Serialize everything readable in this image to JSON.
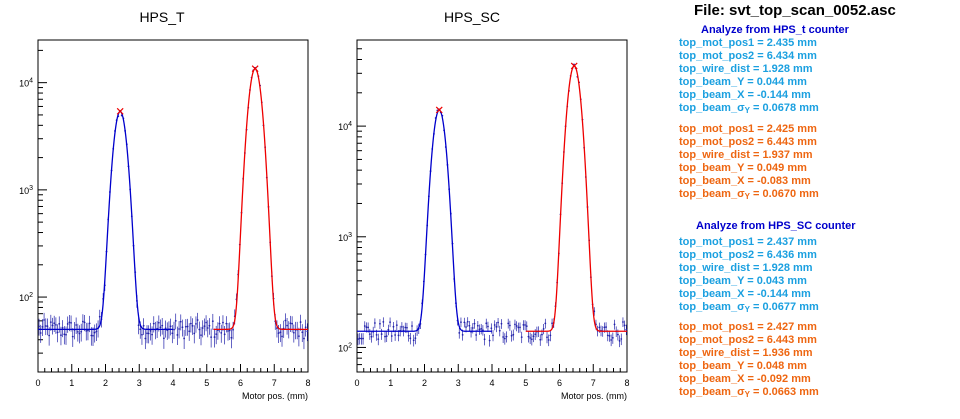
{
  "chart_data": [
    {
      "type": "scatter",
      "title": "HPS_T",
      "xlabel": "Motor pos. (mm)",
      "ylabel": "",
      "xlim": [
        0,
        8
      ],
      "ylim": [
        20,
        25000
      ],
      "yscale": "log",
      "xticks": [
        "0",
        "1",
        "2",
        "3",
        "4",
        "5",
        "6",
        "7",
        "8"
      ],
      "yticks": [
        "10^2",
        "10^3",
        "10^4"
      ],
      "series": [
        {
          "color": "#2222aa",
          "style": "points-with-errorbars",
          "baseline": 50,
          "peaks": [
            {
              "x": 2.435,
              "y": 5400
            },
            {
              "x": 6.434,
              "y": 13500
            }
          ]
        },
        {
          "color": "#0000cc",
          "style": "fit-line",
          "x_range": [
            0,
            4.0
          ],
          "mu": 2.435,
          "sigma": 0.16,
          "amp": 5400,
          "baseline": 50
        },
        {
          "color": "#ee0000",
          "style": "fit-line",
          "x_range": [
            5.2,
            8
          ],
          "mu": 6.434,
          "sigma": 0.16,
          "amp": 13500,
          "baseline": 50
        }
      ]
    },
    {
      "type": "scatter",
      "title": "HPS_SC",
      "xlabel": "Motor pos. (mm)",
      "ylabel": "",
      "xlim": [
        0,
        8
      ],
      "ylim": [
        60,
        60000
      ],
      "yscale": "log",
      "xticks": [
        "0",
        "1",
        "2",
        "3",
        "4",
        "5",
        "6",
        "7",
        "8"
      ],
      "yticks": [
        "10^2",
        "10^3",
        "10^4"
      ],
      "series": [
        {
          "color": "#2222aa",
          "style": "points-with-errorbars",
          "baseline": 140,
          "peaks": [
            {
              "x": 2.437,
              "y": 14000
            },
            {
              "x": 6.436,
              "y": 35000
            }
          ]
        },
        {
          "color": "#0000cc",
          "style": "fit-line",
          "x_range": [
            0,
            4.0
          ],
          "mu": 2.437,
          "sigma": 0.16,
          "amp": 14000,
          "baseline": 140
        },
        {
          "color": "#ee0000",
          "style": "fit-line",
          "x_range": [
            5.0,
            8
          ],
          "mu": 6.436,
          "sigma": 0.16,
          "amp": 35000,
          "baseline": 140
        }
      ]
    }
  ],
  "file_title": "File: svt_top_scan_0052.asc",
  "hps_t_section": {
    "heading": "Analyze from HPS_t counter",
    "blue_lines": [
      "top_mot_pos1 = 2.435 mm",
      "top_mot_pos2 = 6.434 mm",
      "top_wire_dist = 1.928 mm",
      "top_beam_Y = 0.044 mm",
      "top_beam_X = -0.144 mm"
    ],
    "blue_sigma_prefix": "top_beam_σ",
    "blue_sigma_sub": "Y",
    "blue_sigma_value": " = 0.0678 mm",
    "orange_lines": [
      "top_mot_pos1 = 2.425 mm",
      "top_mot_pos2 = 6.443 mm",
      "top_wire_dist = 1.937 mm",
      "top_beam_Y = 0.049 mm",
      "top_beam_X = -0.083 mm"
    ],
    "orange_sigma_prefix": "top_beam_σ",
    "orange_sigma_sub": "Y",
    "orange_sigma_value": " = 0.0670 mm"
  },
  "hps_sc_section": {
    "heading": "Analyze from HPS_SC counter",
    "blue_lines": [
      "top_mot_pos1 = 2.437 mm",
      "top_mot_pos2 = 6.436 mm",
      "top_wire_dist = 1.928 mm",
      "top_beam_Y = 0.043 mm",
      "top_beam_X = -0.144 mm"
    ],
    "blue_sigma_prefix": "top_beam_σ",
    "blue_sigma_sub": "Y",
    "blue_sigma_value": " = 0.0677 mm",
    "orange_lines": [
      "top_mot_pos1 = 2.427 mm",
      "top_mot_pos2 = 6.443 mm",
      "top_wire_dist = 1.936 mm",
      "top_beam_Y = 0.048 mm",
      "top_beam_X = -0.092 mm"
    ],
    "orange_sigma_prefix": "top_beam_σ",
    "orange_sigma_sub": "Y",
    "orange_sigma_value": " = 0.0663 mm"
  }
}
